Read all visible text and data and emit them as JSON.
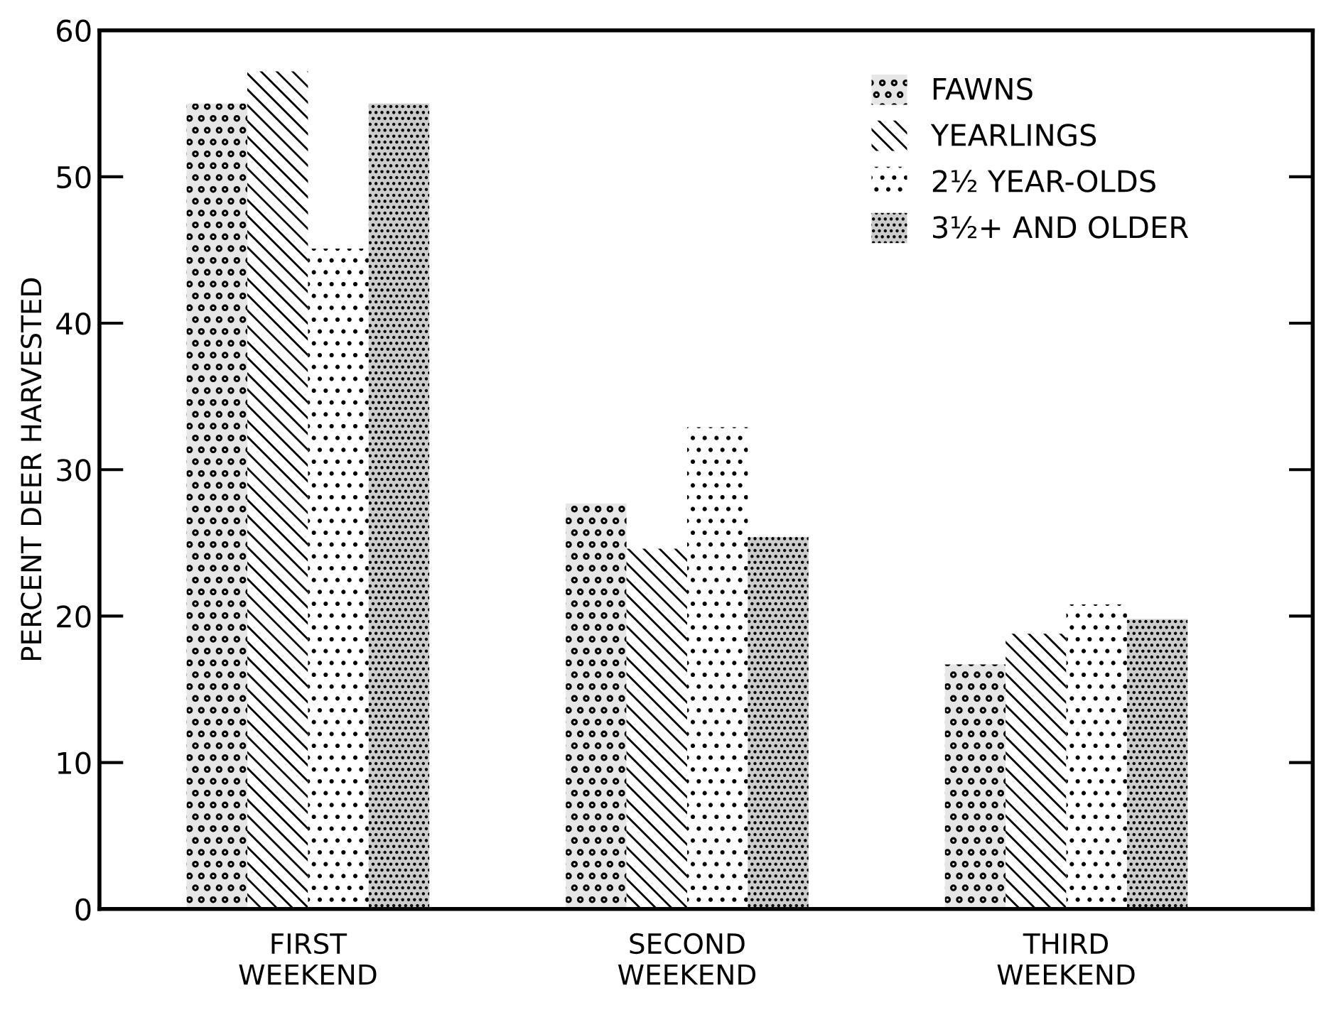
{
  "chart_data": {
    "type": "bar",
    "ylabel": "PERCENT DEER HARVESTED",
    "categories": [
      "FIRST\nWEEKEND",
      "SECOND\nWEEKEND",
      "THIRD\nWEEKEND"
    ],
    "series": [
      {
        "name": "FAWNS",
        "color": "#e6e6e6",
        "values": [
          55,
          27.7,
          16.7
        ]
      },
      {
        "name": "YEARLINGS",
        "color": "#ffffff",
        "values": [
          57.2,
          24.6,
          18.8
        ]
      },
      {
        "name": "2½ YEAR-OLDS",
        "color": "#ffffff",
        "values": [
          45.1,
          32.9,
          20.8
        ]
      },
      {
        "name": "3½+ AND OLDER",
        "color": "#cccccc",
        "values": [
          55,
          25.4,
          19.8
        ]
      }
    ],
    "ylim": [
      0,
      60
    ],
    "yticks": [
      0,
      10,
      20,
      30,
      40,
      50,
      60
    ],
    "grid": false,
    "legend": "top right"
  }
}
